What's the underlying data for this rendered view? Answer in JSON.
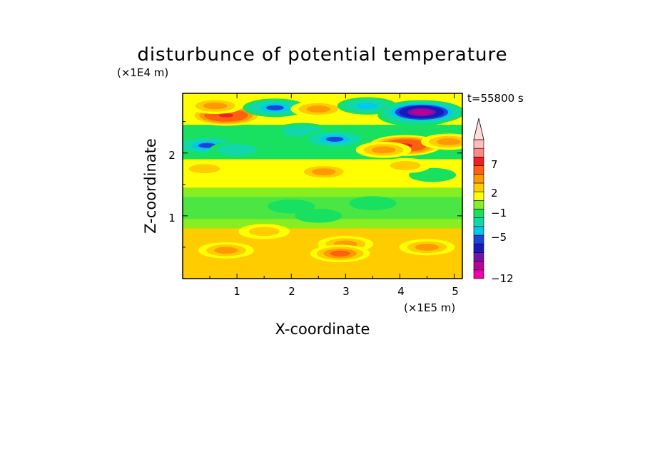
{
  "chart_data": {
    "type": "heatmap",
    "title": "disturbunce of potential temperature",
    "xlabel": "X-coordinate",
    "ylabel": "Z-coordinate",
    "x_unit": "(×1E5 m)",
    "y_unit": "(×1E4 m)",
    "time_label": "t=55800 s",
    "xlim": [
      0,
      5.15
    ],
    "ylim": [
      0,
      2.95
    ],
    "x_ticks": [
      1,
      2,
      3,
      4,
      5
    ],
    "x_tick_labels": [
      "1",
      "2",
      "3",
      "4",
      "5"
    ],
    "y_ticks": [
      1,
      2
    ],
    "y_tick_labels": [
      "1",
      "2"
    ],
    "colorbar": {
      "levels": [
        -12,
        -10,
        -8,
        -7,
        -5,
        -4,
        -3,
        -1,
        0,
        1,
        2,
        3,
        4,
        7,
        8,
        9,
        10
      ],
      "tick_values": [
        -12,
        -5,
        -1,
        2,
        7
      ],
      "tick_labels": [
        "−12",
        "−5",
        "−1",
        "2",
        "7"
      ],
      "colors": [
        "#ee00aa",
        "#bb0099",
        "#7711aa",
        "#1818bb",
        "#1c44dd",
        "#00c8f0",
        "#10d8a8",
        "#18e060",
        "#88ee20",
        "#ffff00",
        "#ffcc00",
        "#ff9900",
        "#ff6010",
        "#ee2020",
        "#ff8888",
        "#ffbbbb"
      ],
      "extend": "max"
    },
    "features": [
      {
        "x": 0.8,
        "z": 2.6,
        "value": 7
      },
      {
        "x": 0.6,
        "z": 2.75,
        "value": 3
      },
      {
        "x": 0.45,
        "z": 2.12,
        "value": -5
      },
      {
        "x": 1.0,
        "z": 2.05,
        "value": -3
      },
      {
        "x": 1.7,
        "z": 2.72,
        "value": -5
      },
      {
        "x": 2.5,
        "z": 2.7,
        "value": 3
      },
      {
        "x": 2.2,
        "z": 2.35,
        "value": -3
      },
      {
        "x": 2.8,
        "z": 2.22,
        "value": -5
      },
      {
        "x": 3.4,
        "z": 2.75,
        "value": -4
      },
      {
        "x": 4.3,
        "z": 2.6,
        "value": -8
      },
      {
        "x": 4.4,
        "z": 2.65,
        "value": -10
      },
      {
        "x": 4.1,
        "z": 2.12,
        "value": 7
      },
      {
        "x": 3.7,
        "z": 2.05,
        "value": 3
      },
      {
        "x": 4.9,
        "z": 2.18,
        "value": 3
      },
      {
        "x": 4.6,
        "z": 1.65,
        "value": -1
      },
      {
        "x": 4.1,
        "z": 1.8,
        "value": 2
      },
      {
        "x": 2.6,
        "z": 1.7,
        "value": 3
      },
      {
        "x": 0.4,
        "z": 1.75,
        "value": 2
      },
      {
        "x": 2.0,
        "z": 1.15,
        "value": -1
      },
      {
        "x": 3.5,
        "z": 1.2,
        "value": -1
      },
      {
        "x": 2.5,
        "z": 1.0,
        "value": -1
      },
      {
        "x": 1.5,
        "z": 0.75,
        "value": 2
      },
      {
        "x": 3.0,
        "z": 0.55,
        "value": 3
      },
      {
        "x": 0.8,
        "z": 0.45,
        "value": 3
      },
      {
        "x": 4.5,
        "z": 0.5,
        "value": 3
      },
      {
        "x": 2.9,
        "z": 0.4,
        "value": 4
      }
    ]
  }
}
